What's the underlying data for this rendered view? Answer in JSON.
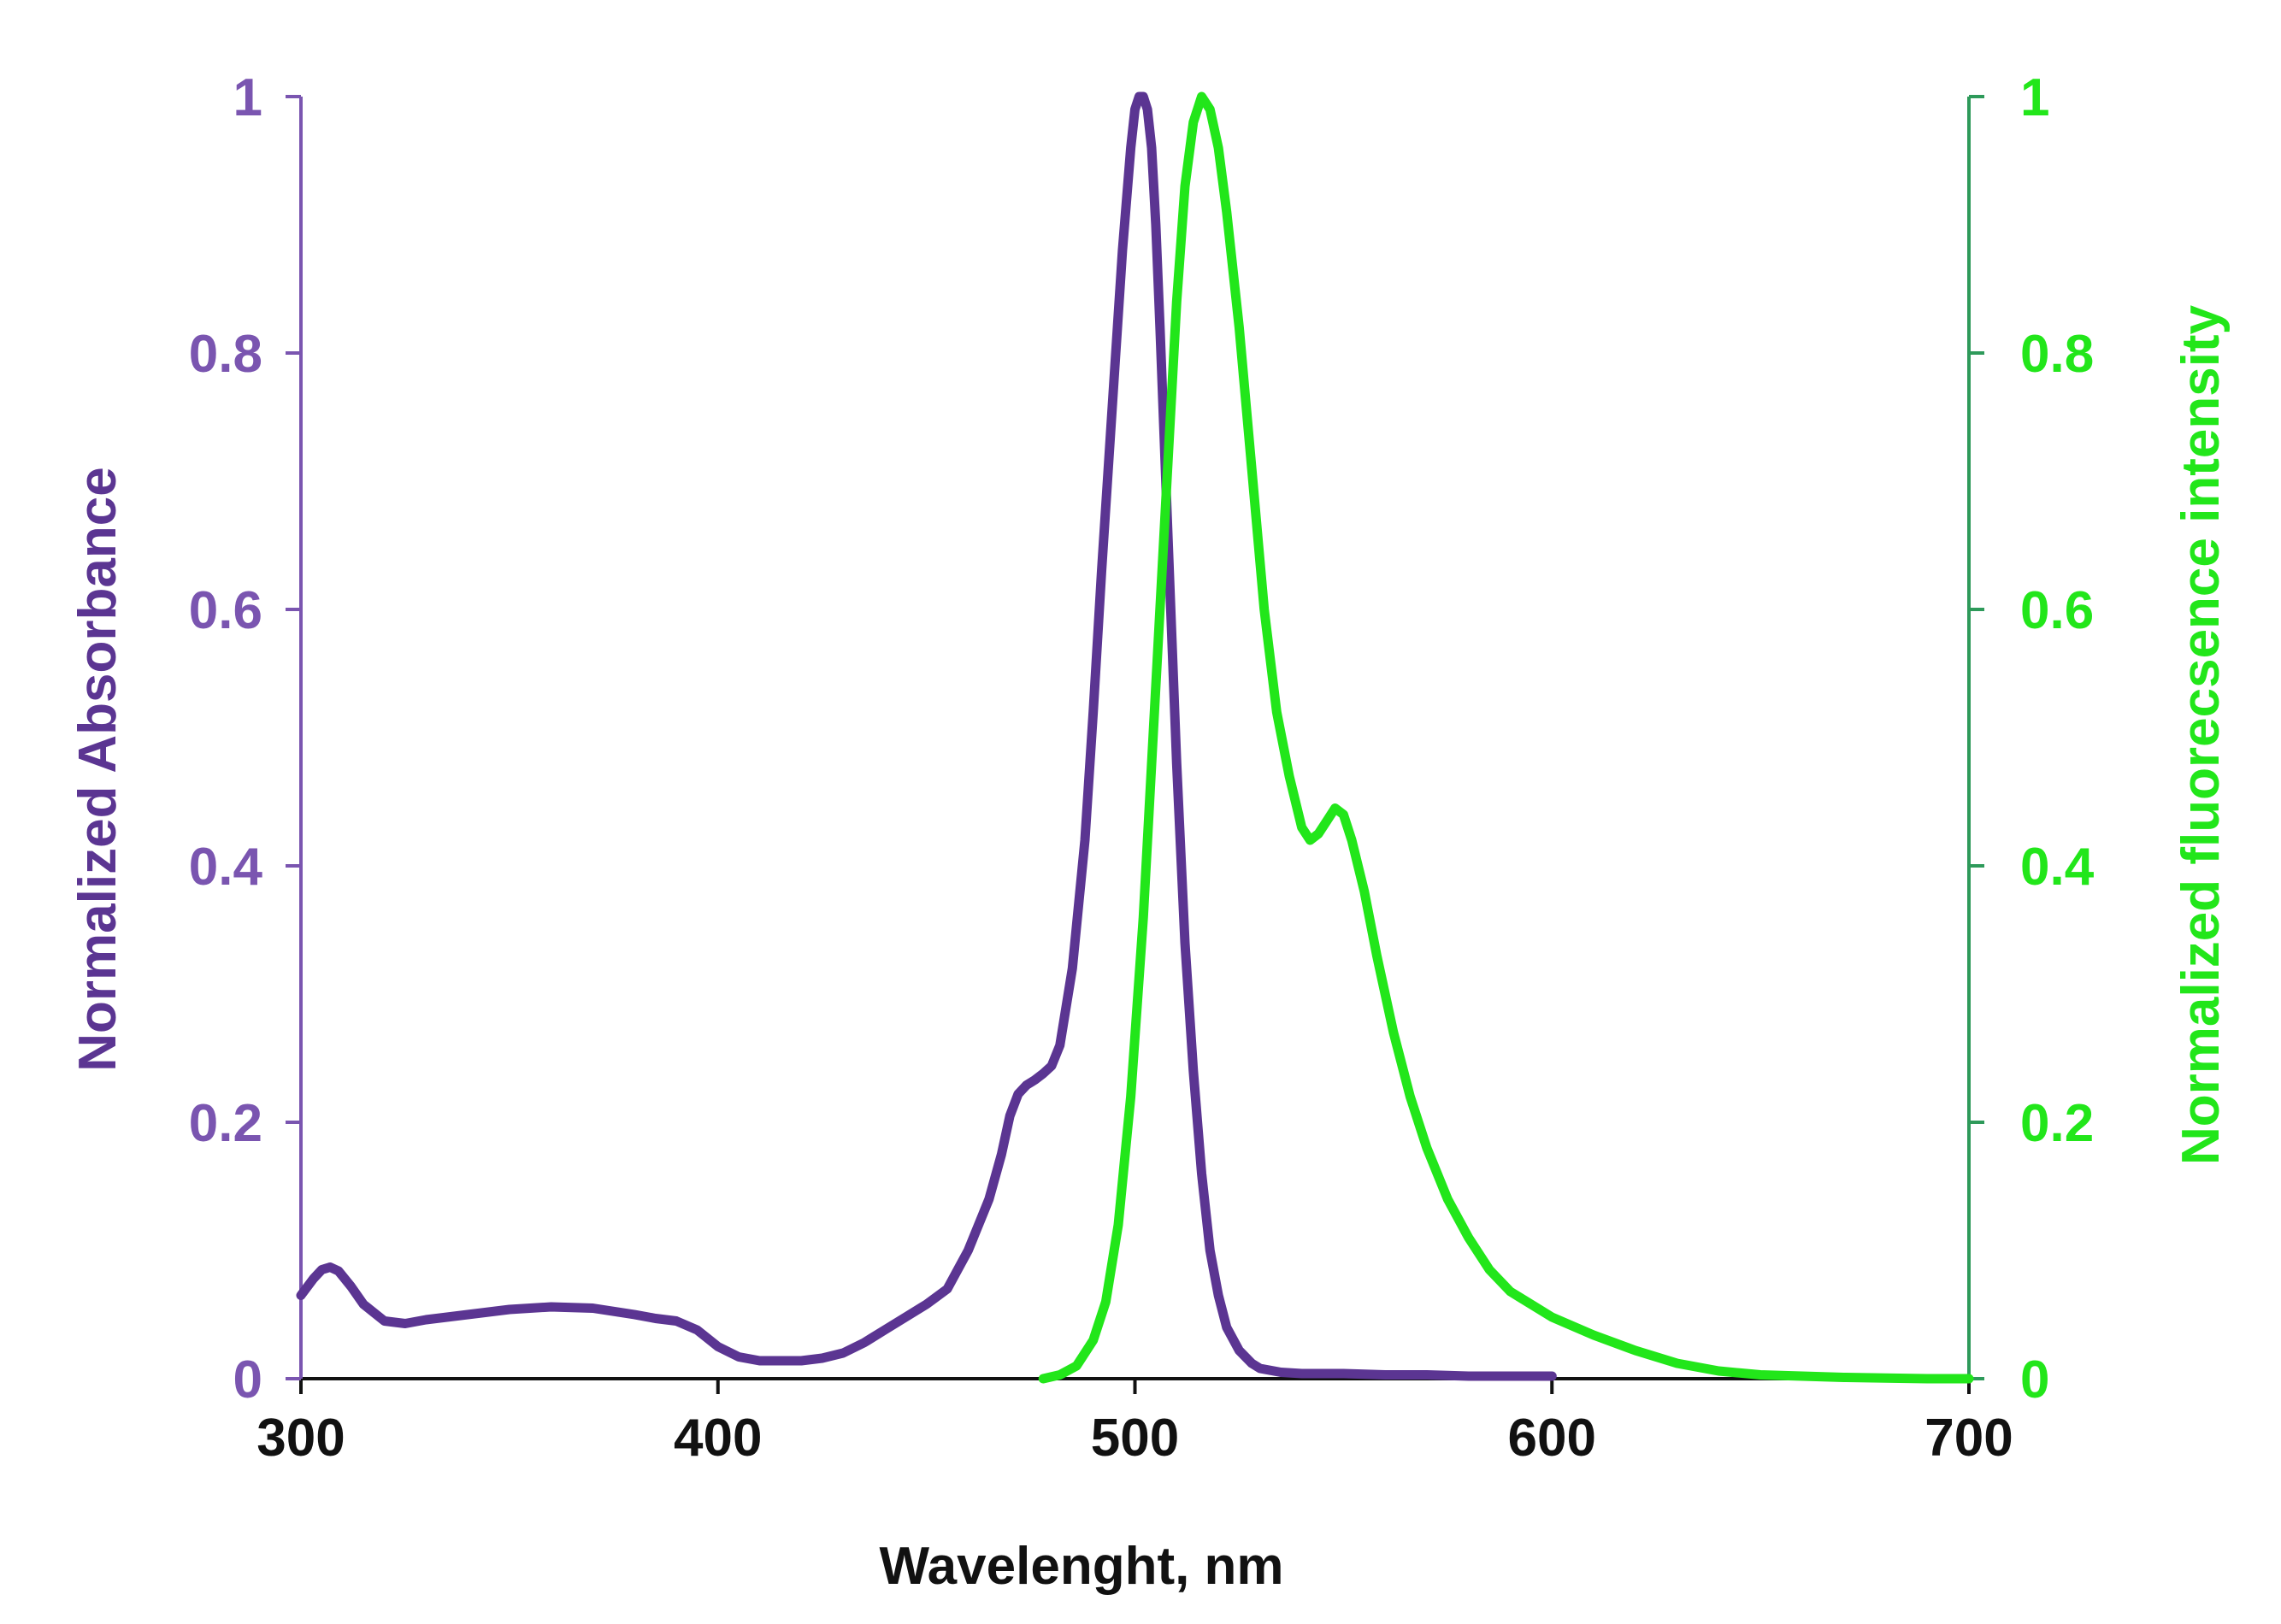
{
  "chart_data": {
    "type": "line",
    "title": "",
    "xlabel": "Wavelenght, nm",
    "ylabel_left": "Normalized Absorbance",
    "ylabel_right": "Normalized fluorecsence intensity",
    "xlim": [
      300,
      700
    ],
    "ylim_left": [
      0,
      1
    ],
    "ylim_right": [
      0,
      1
    ],
    "x_ticks": [
      "300",
      "400",
      "500",
      "600",
      "700"
    ],
    "y_ticks_left": [
      "0",
      "0.2",
      "0.4",
      "0.6",
      "0.8",
      "1"
    ],
    "y_ticks_right": [
      "0",
      "0.2",
      "0.4",
      "0.6",
      "0.8",
      "1"
    ],
    "grid": false,
    "colors": {
      "absorbance": "#5b3592",
      "fluorescence": "#22e61a",
      "left_axis": "#7a55b0",
      "right_axis": "#2e9a5a",
      "x_axis_text": "#111111"
    },
    "series": [
      {
        "name": "Absorbance",
        "axis": "left",
        "x": [
          300,
          303,
          305,
          307,
          309,
          312,
          315,
          320,
          325,
          330,
          340,
          350,
          360,
          370,
          380,
          385,
          390,
          395,
          400,
          405,
          410,
          420,
          425,
          430,
          435,
          440,
          445,
          450,
          455,
          460,
          465,
          468,
          470,
          472,
          474,
          476,
          478,
          480,
          482,
          485,
          488,
          490,
          492,
          495,
          497,
          499,
          500,
          501,
          502,
          503,
          504,
          505,
          506,
          508,
          510,
          512,
          514,
          516,
          518,
          520,
          522,
          525,
          528,
          530,
          535,
          540,
          550,
          560,
          570,
          580,
          590,
          600
        ],
        "values": [
          0.065,
          0.078,
          0.085,
          0.087,
          0.084,
          0.072,
          0.058,
          0.045,
          0.043,
          0.046,
          0.05,
          0.054,
          0.056,
          0.055,
          0.05,
          0.047,
          0.045,
          0.038,
          0.025,
          0.017,
          0.014,
          0.014,
          0.016,
          0.02,
          0.028,
          0.038,
          0.048,
          0.058,
          0.07,
          0.1,
          0.14,
          0.175,
          0.205,
          0.222,
          0.229,
          0.233,
          0.238,
          0.244,
          0.26,
          0.32,
          0.42,
          0.52,
          0.63,
          0.78,
          0.88,
          0.96,
          0.99,
          1.0,
          1.0,
          0.99,
          0.96,
          0.9,
          0.82,
          0.65,
          0.48,
          0.34,
          0.24,
          0.16,
          0.1,
          0.065,
          0.04,
          0.022,
          0.012,
          0.008,
          0.005,
          0.004,
          0.004,
          0.003,
          0.003,
          0.002,
          0.002,
          0.002
        ]
      },
      {
        "name": "Fluorescence",
        "axis": "right",
        "x": [
          478,
          482,
          486,
          490,
          493,
          496,
          499,
          502,
          505,
          508,
          510,
          512,
          514,
          516,
          518,
          520,
          522,
          525,
          528,
          531,
          534,
          537,
          540,
          542,
          544,
          546,
          548,
          550,
          552,
          555,
          558,
          562,
          566,
          570,
          575,
          580,
          585,
          590,
          600,
          610,
          620,
          630,
          640,
          650,
          660,
          670,
          680,
          690,
          700
        ],
        "values": [
          0.0,
          0.003,
          0.01,
          0.03,
          0.06,
          0.12,
          0.22,
          0.36,
          0.54,
          0.72,
          0.84,
          0.93,
          0.98,
          1.0,
          0.99,
          0.96,
          0.91,
          0.82,
          0.71,
          0.6,
          0.52,
          0.47,
          0.43,
          0.42,
          0.425,
          0.435,
          0.445,
          0.44,
          0.42,
          0.38,
          0.33,
          0.27,
          0.22,
          0.18,
          0.14,
          0.11,
          0.085,
          0.068,
          0.048,
          0.034,
          0.022,
          0.012,
          0.006,
          0.003,
          0.002,
          0.001,
          0.0005,
          0.0,
          0.0
        ]
      }
    ]
  }
}
